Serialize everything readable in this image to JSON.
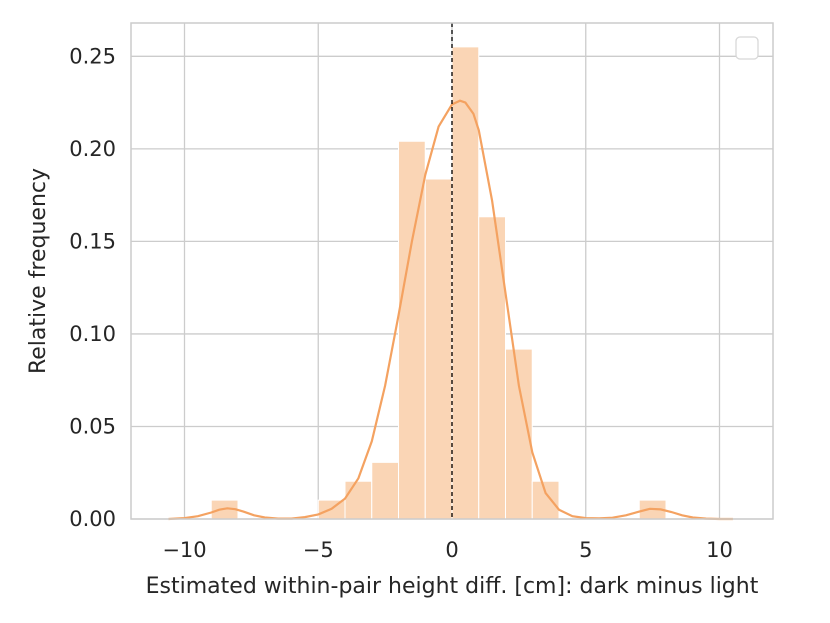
{
  "chart_data": {
    "type": "bar",
    "xlabel": "Estimated within-pair height diff. [cm]: dark minus light",
    "ylabel": "Relative frequency",
    "xlim": [
      -12,
      12
    ],
    "ylim": [
      0,
      0.268
    ],
    "grid": true,
    "legend": {
      "position": "top-right",
      "entries": []
    },
    "xticks": [
      {
        "value": -10,
        "label": "−10"
      },
      {
        "value": -5,
        "label": "−5"
      },
      {
        "value": 0,
        "label": "0"
      },
      {
        "value": 5,
        "label": "5"
      },
      {
        "value": 10,
        "label": "10"
      }
    ],
    "yticks": [
      {
        "value": 0,
        "label": "0.00"
      },
      {
        "value": 0.05,
        "label": "0.05"
      },
      {
        "value": 0.1,
        "label": "0.10"
      },
      {
        "value": 0.15,
        "label": "0.15"
      },
      {
        "value": 0.2,
        "label": "0.20"
      },
      {
        "value": 0.25,
        "label": "0.25"
      }
    ],
    "histogram": {
      "color": "#fad5b5",
      "bins": [
        {
          "x0": -9.0,
          "x1": -8.0,
          "value": 0.0102
        },
        {
          "x0": -5.0,
          "x1": -4.0,
          "value": 0.0102
        },
        {
          "x0": -4.0,
          "x1": -3.0,
          "value": 0.0204
        },
        {
          "x0": -3.0,
          "x1": -2.0,
          "value": 0.0306
        },
        {
          "x0": -2.0,
          "x1": -1.0,
          "value": 0.2041
        },
        {
          "x0": -1.0,
          "x1": 0.0,
          "value": 0.1837
        },
        {
          "x0": 0.0,
          "x1": 1.0,
          "value": 0.2551
        },
        {
          "x0": 1.0,
          "x1": 2.0,
          "value": 0.1633
        },
        {
          "x0": 2.0,
          "x1": 3.0,
          "value": 0.0918
        },
        {
          "x0": 3.0,
          "x1": 4.0,
          "value": 0.0204
        },
        {
          "x0": 7.0,
          "x1": 8.0,
          "value": 0.0102
        }
      ]
    },
    "kde": {
      "color": "#f4a261",
      "x": [
        -10.6,
        -10.0,
        -9.5,
        -9.0,
        -8.7,
        -8.4,
        -8.1,
        -7.8,
        -7.4,
        -7.0,
        -6.5,
        -6.0,
        -5.5,
        -5.0,
        -4.5,
        -4.0,
        -3.5,
        -3.0,
        -2.5,
        -2.0,
        -1.5,
        -1.0,
        -0.5,
        0.0,
        0.3,
        0.5,
        0.8,
        1.0,
        1.5,
        2.0,
        2.5,
        3.0,
        3.5,
        4.0,
        4.5,
        5.0,
        5.5,
        6.0,
        6.5,
        7.0,
        7.4,
        7.8,
        8.2,
        8.6,
        9.0,
        9.5,
        10.0,
        10.5
      ],
      "y": [
        0.0,
        0.0005,
        0.0015,
        0.0035,
        0.005,
        0.0058,
        0.0053,
        0.004,
        0.002,
        0.0008,
        0.0002,
        0.0002,
        0.001,
        0.0025,
        0.0055,
        0.011,
        0.022,
        0.042,
        0.072,
        0.11,
        0.15,
        0.186,
        0.212,
        0.224,
        0.226,
        0.225,
        0.219,
        0.21,
        0.172,
        0.122,
        0.072,
        0.036,
        0.014,
        0.005,
        0.0015,
        0.0005,
        0.0003,
        0.0007,
        0.002,
        0.004,
        0.0055,
        0.0052,
        0.0038,
        0.002,
        0.0008,
        0.0002,
        0.0,
        0.0
      ]
    },
    "vline": {
      "x": 0,
      "style": "dashed",
      "color": "#000000"
    }
  }
}
